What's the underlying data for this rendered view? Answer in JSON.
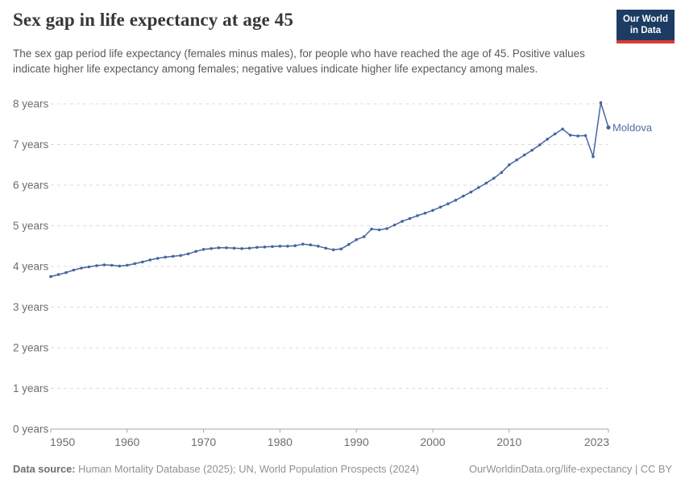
{
  "header": {
    "title": "Sex gap in life expectancy at age 45",
    "subtitle": "The sex gap period life expectancy (females minus males), for people who have reached the age of 45. Positive values indicate higher life expectancy among females; negative values indicate higher life expectancy among males.",
    "logo": {
      "line1": "Our World",
      "line2": "in Data"
    }
  },
  "colors": {
    "line": "#4566a0",
    "entity_label": "#4e6ca3",
    "logo_bg": "#1d3c63",
    "logo_stripe": "#dc3a32",
    "gridline": "#dcdcdc",
    "axis": "#a6a6a6",
    "tick_text": "#6e6e6e"
  },
  "chart_data": {
    "type": "line",
    "title": "Sex gap in life expectancy at age 45",
    "entity": "Moldova",
    "xlabel": "",
    "ylabel": "",
    "unit": "years",
    "ylim": [
      0,
      8
    ],
    "xlim": [
      1950,
      2023
    ],
    "grid": "dashed horizontal gridlines",
    "legend_position": "end-of-line label",
    "yticks": [
      0,
      1,
      2,
      3,
      4,
      5,
      6,
      7,
      8
    ],
    "ytick_label_suffix": " years",
    "xticks": [
      1950,
      1960,
      1970,
      1980,
      1990,
      2000,
      2010,
      2023
    ],
    "x": [
      1950,
      1951,
      1952,
      1953,
      1954,
      1955,
      1956,
      1957,
      1958,
      1959,
      1960,
      1961,
      1962,
      1963,
      1964,
      1965,
      1966,
      1967,
      1968,
      1969,
      1970,
      1971,
      1972,
      1973,
      1974,
      1975,
      1976,
      1977,
      1978,
      1979,
      1980,
      1981,
      1982,
      1983,
      1984,
      1985,
      1986,
      1987,
      1988,
      1989,
      1990,
      1991,
      1992,
      1993,
      1994,
      1995,
      1996,
      1997,
      1998,
      1999,
      2000,
      2001,
      2002,
      2003,
      2004,
      2005,
      2006,
      2007,
      2008,
      2009,
      2010,
      2011,
      2012,
      2013,
      2014,
      2015,
      2016,
      2017,
      2018,
      2019,
      2020,
      2021,
      2022,
      2023
    ],
    "values": [
      3.75,
      3.8,
      3.85,
      3.91,
      3.96,
      3.99,
      4.02,
      4.04,
      4.03,
      4.01,
      4.03,
      4.07,
      4.11,
      4.16,
      4.2,
      4.23,
      4.25,
      4.27,
      4.31,
      4.37,
      4.42,
      4.44,
      4.46,
      4.46,
      4.45,
      4.44,
      4.45,
      4.47,
      4.48,
      4.49,
      4.5,
      4.5,
      4.51,
      4.55,
      4.53,
      4.5,
      4.45,
      4.41,
      4.43,
      4.54,
      4.66,
      4.73,
      4.92,
      4.9,
      4.93,
      5.02,
      5.11,
      5.18,
      5.25,
      5.31,
      5.38,
      5.46,
      5.54,
      5.63,
      5.73,
      5.83,
      5.94,
      6.05,
      6.17,
      6.31,
      6.5,
      6.62,
      6.74,
      6.86,
      6.99,
      7.13,
      7.26,
      7.38,
      7.23,
      7.21,
      7.22,
      6.7,
      8.03,
      7.42
    ]
  },
  "footer": {
    "source_label": "Data source:",
    "source_text": " Human Mortality Database (2025); UN, World Population Prospects (2024)",
    "link_text": "OurWorldinData.org/life-expectancy | CC BY"
  }
}
